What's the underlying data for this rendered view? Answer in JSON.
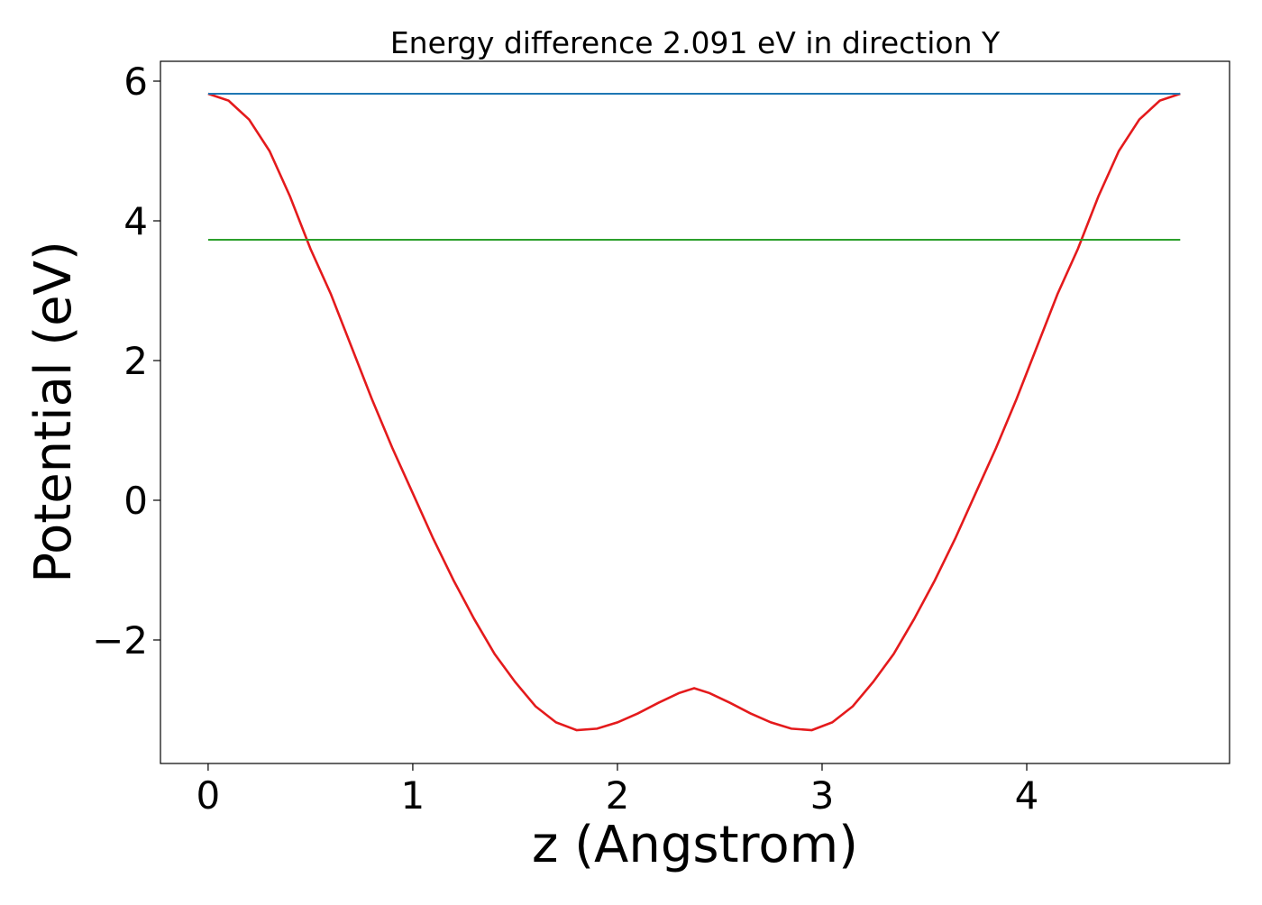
{
  "chart_data": {
    "type": "line",
    "title": "Energy difference 2.091 eV in direction Y",
    "xlabel": "z (Angstrom)",
    "ylabel": "Potential (eV)",
    "xlim": [
      -0.233,
      4.991
    ],
    "ylim": [
      -3.768,
      6.284
    ],
    "xticks": [
      0,
      1,
      2,
      3,
      4
    ],
    "xtick_labels": [
      "0",
      "1",
      "2",
      "3",
      "4"
    ],
    "yticks": [
      -2,
      0,
      2,
      4,
      6
    ],
    "ytick_labels": [
      "−2",
      "0",
      "2",
      "4",
      "6"
    ],
    "grid": false,
    "series": [
      {
        "color": "#e41a1c",
        "x": [
          0,
          0.1,
          0.2,
          0.3,
          0.4,
          0.5,
          0.6,
          0.7,
          0.8,
          0.9,
          1.0,
          1.1,
          1.2,
          1.3,
          1.4,
          1.5,
          1.6,
          1.7,
          1.8,
          1.9,
          2.0,
          2.1,
          2.2,
          2.3,
          2.375,
          2.45,
          2.55,
          2.65,
          2.75,
          2.85,
          2.95,
          3.05,
          3.15,
          3.25,
          3.35,
          3.45,
          3.55,
          3.65,
          3.75,
          3.85,
          3.95,
          4.05,
          4.15,
          4.25,
          4.35,
          4.45,
          4.55,
          4.65,
          4.75
        ],
        "y": [
          5.82,
          5.72,
          5.45,
          5.0,
          4.35,
          3.6,
          2.95,
          2.2,
          1.45,
          0.75,
          0.1,
          -0.55,
          -1.15,
          -1.7,
          -2.2,
          -2.6,
          -2.95,
          -3.18,
          -3.29,
          -3.27,
          -3.18,
          -3.05,
          -2.9,
          -2.76,
          -2.69,
          -2.76,
          -2.9,
          -3.05,
          -3.18,
          -3.27,
          -3.29,
          -3.18,
          -2.95,
          -2.6,
          -2.2,
          -1.7,
          -1.15,
          -0.55,
          0.1,
          0.75,
          1.45,
          2.2,
          2.95,
          3.6,
          4.35,
          5.0,
          5.45,
          5.72,
          5.82
        ]
      },
      {
        "color": "#1f77b4",
        "x": [
          0,
          4.75
        ],
        "y": [
          5.82,
          5.82
        ]
      },
      {
        "color": "#2ca02c",
        "x": [
          0,
          4.75
        ],
        "y": [
          3.729,
          3.729
        ]
      }
    ]
  }
}
